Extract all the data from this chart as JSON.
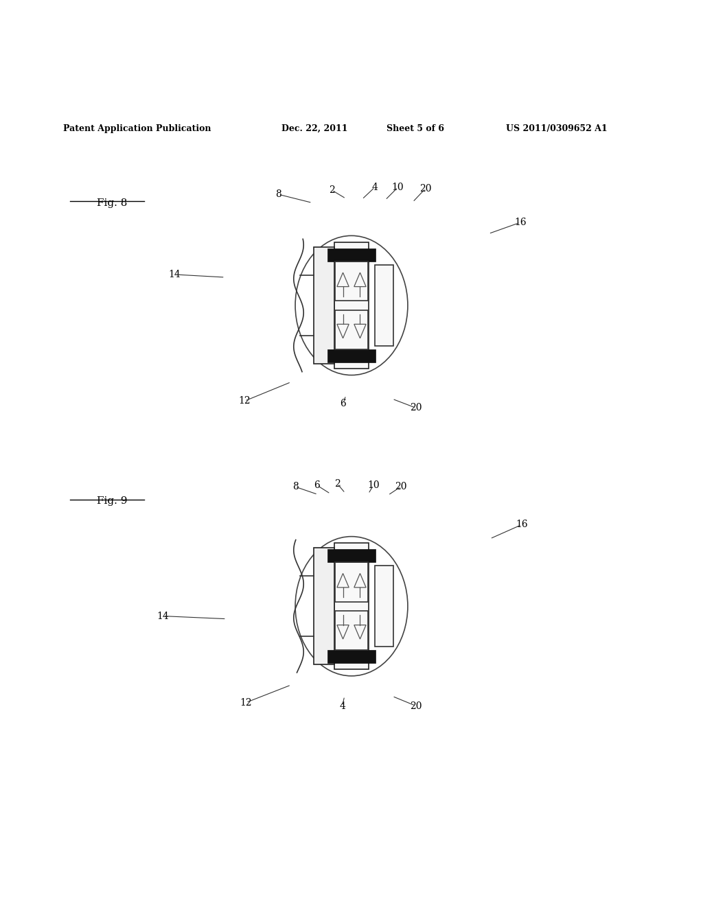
{
  "background_color": "#ffffff",
  "header_text": "Patent Application Publication",
  "header_date": "Dec. 22, 2011",
  "header_sheet": "Sheet 5 of 6",
  "header_patent": "US 2011/0309652 A1",
  "fig8_label": "Fig. 8",
  "fig9_label": "Fig. 9"
}
